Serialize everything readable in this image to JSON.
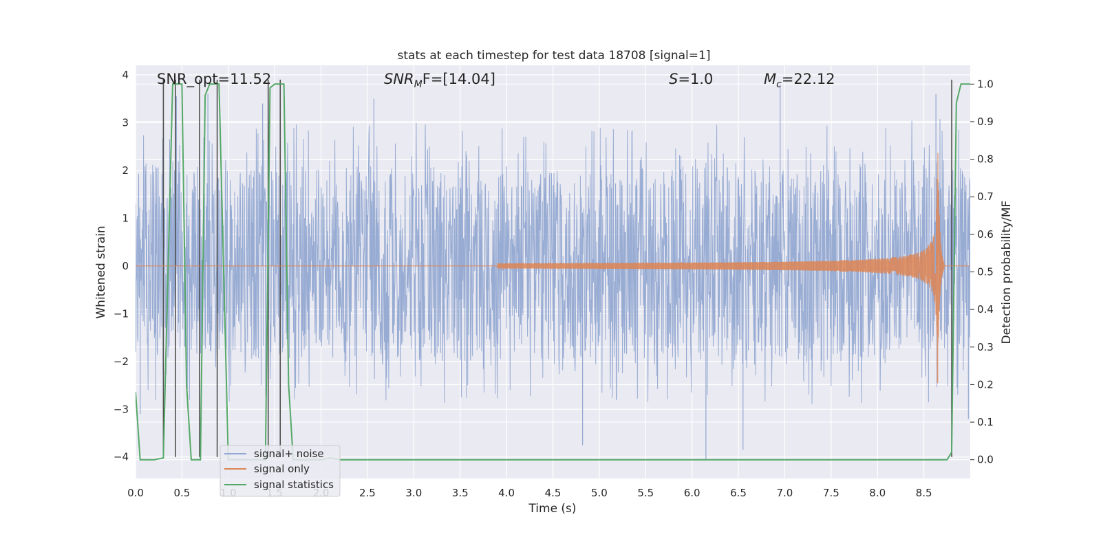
{
  "chart_data": {
    "type": "line",
    "title": "stats at each timestep for test data 18708 [signal=1]",
    "xlabel": "Time (s)",
    "ylabel": "Whitened strain",
    "y2label": "Detection probability/MF",
    "xlim": [
      0.0,
      9.0
    ],
    "ylim": [
      -4.45,
      4.2
    ],
    "y2lim": [
      -0.05,
      1.05
    ],
    "xticks": [
      "0.0",
      "0.5",
      "1.0",
      "1.5",
      "2.0",
      "2.5",
      "3.0",
      "3.5",
      "4.0",
      "4.5",
      "5.0",
      "5.5",
      "6.0",
      "6.5",
      "7.0",
      "7.5",
      "8.0",
      "8.5"
    ],
    "xtick_values": [
      0.0,
      0.5,
      1.0,
      1.5,
      2.0,
      2.5,
      3.0,
      3.5,
      4.0,
      4.5,
      5.0,
      5.5,
      6.0,
      6.5,
      7.0,
      7.5,
      8.0,
      8.5
    ],
    "yticks": [
      "−4",
      "−3",
      "−2",
      "−1",
      "0",
      "1",
      "2",
      "3",
      "4"
    ],
    "ytick_values": [
      -4,
      -3,
      -2,
      -1,
      0,
      1,
      2,
      3,
      4
    ],
    "y2ticks": [
      "0.0",
      "0.1",
      "0.2",
      "0.3",
      "0.4",
      "0.5",
      "0.6",
      "0.7",
      "0.8",
      "0.9",
      "1.0"
    ],
    "y2tick_values": [
      0.0,
      0.1,
      0.2,
      0.3,
      0.4,
      0.5,
      0.6,
      0.7,
      0.8,
      0.9,
      1.0
    ],
    "grid": true,
    "legend_position": "lower-left",
    "annotations": {
      "snr_opt": "SNR_opt=11.52",
      "snr_mf_var": "SNR",
      "snr_mf_sub": "M",
      "snr_mf_rest": "F=[14.04]",
      "s_var": "S",
      "s_rest": "=1.0",
      "mc_var": "M",
      "mc_sub": "c",
      "mc_rest": "=22.12"
    },
    "series": [
      {
        "name": "signal+ noise",
        "color": "#92a8d1",
        "envelope": {
          "x": [
            0.0,
            1.0,
            2.0,
            3.0,
            4.0,
            5.0,
            6.0,
            7.0,
            8.0,
            8.5,
            8.8,
            9.0
          ],
          "typical_upper": [
            2.1,
            2.0,
            2.1,
            2.1,
            2.0,
            2.0,
            2.1,
            2.0,
            2.1,
            2.3,
            2.1,
            2.1
          ],
          "typical_lower": [
            -1.9,
            -2.0,
            -1.9,
            -2.0,
            -2.0,
            -1.9,
            -2.0,
            -2.0,
            -2.0,
            -2.1,
            -2.0,
            -2.0
          ]
        },
        "peaks": [
          {
            "x": 0.44,
            "y": 3.55
          },
          {
            "x": 0.78,
            "y": 3.6
          },
          {
            "x": 1.37,
            "y": 3.4
          },
          {
            "x": 2.57,
            "y": 3.5
          },
          {
            "x": 6.95,
            "y": 3.8
          },
          {
            "x": 8.63,
            "y": 3.6
          },
          {
            "x": 4.82,
            "y": -3.75
          },
          {
            "x": 6.15,
            "y": -4.05
          },
          {
            "x": 6.55,
            "y": -3.85
          },
          {
            "x": 0.05,
            "y": -3.1
          },
          {
            "x": 8.98,
            "y": -3.2
          }
        ]
      },
      {
        "name": "signal only",
        "color": "#dd8452",
        "chirp": {
          "start": 3.9,
          "merger": 8.65,
          "ringdown_end": 8.72,
          "peak_amplitude": 2.5
        }
      },
      {
        "name": "signal statistics",
        "color": "#55a868",
        "axis": "y2",
        "x": [
          0.0,
          0.05,
          0.1,
          0.2,
          0.3,
          0.4,
          0.5,
          0.55,
          0.6,
          0.7,
          0.75,
          0.8,
          0.9,
          1.0,
          1.1,
          1.3,
          1.4,
          1.45,
          1.5,
          1.6,
          1.65,
          1.7,
          1.8,
          2.0,
          2.1,
          2.2,
          2.3,
          2.5,
          3.0,
          4.0,
          5.0,
          6.0,
          7.0,
          8.0,
          8.5,
          8.75,
          8.8,
          8.85,
          8.9,
          9.0
        ],
        "y": [
          0.18,
          0.0,
          0.0,
          0.0,
          0.005,
          1.0,
          1.0,
          0.2,
          0.0,
          0.0,
          0.97,
          1.0,
          1.0,
          0.0,
          0.0,
          0.0,
          0.0,
          0.99,
          1.0,
          1.0,
          0.2,
          0.0,
          0.0,
          0.0,
          0.005,
          0.0,
          0.0,
          0.0,
          0.0,
          0.0,
          0.0,
          0.0,
          0.0,
          0.0,
          0.0,
          0.0,
          0.02,
          0.95,
          1.0,
          1.0
        ]
      }
    ],
    "vertical_markers": {
      "color": "#4d4d4d",
      "segments": [
        {
          "x": 0.3,
          "from": -4.0,
          "to": 3.9
        },
        {
          "x": 0.43,
          "from": -4.0,
          "to": 3.9
        },
        {
          "x": 0.69,
          "from": -4.0,
          "to": 3.9
        },
        {
          "x": 0.88,
          "from": -4.0,
          "to": 3.9
        },
        {
          "x": 1.43,
          "from": -4.0,
          "to": 3.9
        },
        {
          "x": 1.56,
          "from": -4.0,
          "to": 3.9
        },
        {
          "x": 8.8,
          "from": -4.0,
          "to": 3.9
        }
      ]
    }
  }
}
